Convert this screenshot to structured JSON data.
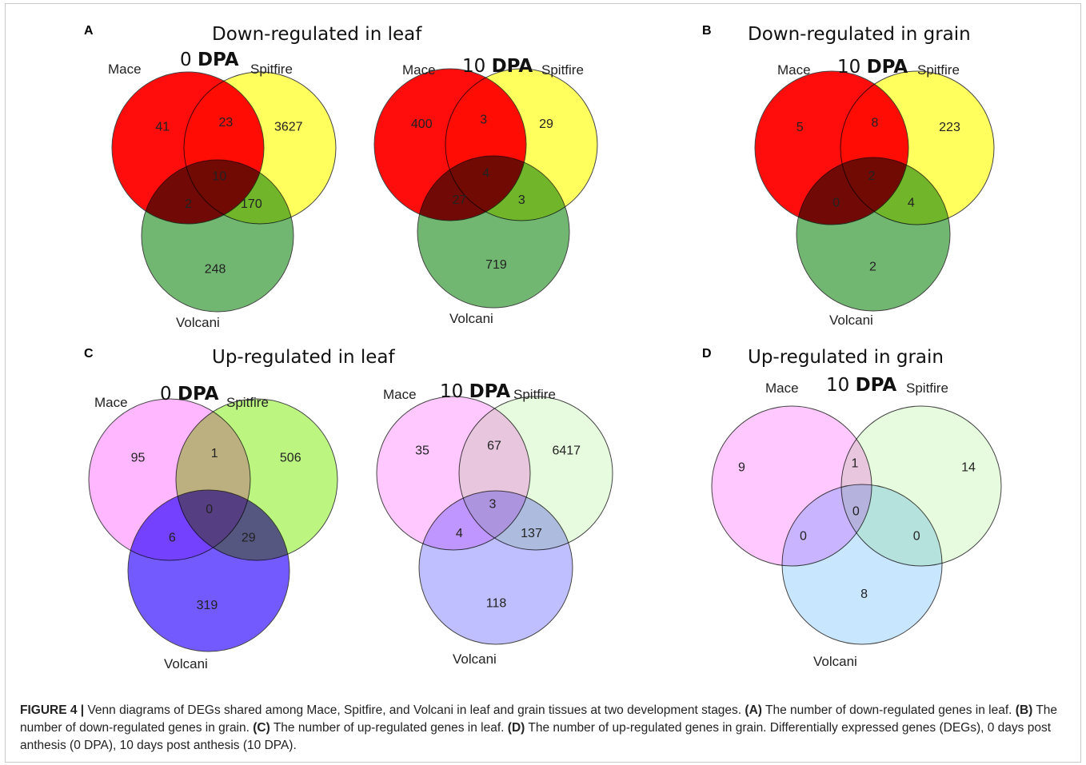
{
  "panels": {
    "A": {
      "letter": "A",
      "title": "Down-regulated in leaf"
    },
    "B": {
      "letter": "B",
      "title": "Down-regulated in grain"
    },
    "C": {
      "letter": "C",
      "title": "Up-regulated in leaf"
    },
    "D": {
      "letter": "D",
      "title": "Up-regulated in grain"
    }
  },
  "venns": [
    {
      "id": "A-0dpa",
      "panel": "A",
      "stage": {
        "number": "0",
        "unit": "DPA"
      },
      "sets": {
        "mace": "Mace",
        "spitfire": "Spitfire",
        "volcani": "Volcani"
      },
      "colors": {
        "mace": "#ff0000",
        "spitfire": "#ffff55",
        "volcani": "#3a9a3a"
      },
      "counts": {
        "mace_only": 41,
        "mace_spitfire": 23,
        "spitfire_only": 3627,
        "all_three": 10,
        "mace_volcani": 2,
        "spitfire_volcani": 170,
        "volcani_only": 248
      }
    },
    {
      "id": "A-10dpa",
      "panel": "A",
      "stage": {
        "number": "10",
        "unit": "DPA"
      },
      "sets": {
        "mace": "Mace",
        "spitfire": "Spitfire",
        "volcani": "Volcani"
      },
      "colors": {
        "mace": "#ff0000",
        "spitfire": "#ffff55",
        "volcani": "#3a9a3a"
      },
      "counts": {
        "mace_only": 400,
        "mace_spitfire": 3,
        "spitfire_only": 29,
        "all_three": 4,
        "mace_volcani": 27,
        "spitfire_volcani": 3,
        "volcani_only": 719
      }
    },
    {
      "id": "B-10dpa",
      "panel": "B",
      "stage": {
        "number": "10",
        "unit": "DPA"
      },
      "sets": {
        "mace": "Mace",
        "spitfire": "Spitfire",
        "volcani": "Volcani"
      },
      "colors": {
        "mace": "#ff0000",
        "spitfire": "#ffff55",
        "volcani": "#3a9a3a"
      },
      "counts": {
        "mace_only": 5,
        "mace_spitfire": 8,
        "spitfire_only": 223,
        "all_three": 2,
        "mace_volcani": 0,
        "spitfire_volcani": 4,
        "volcani_only": 2
      }
    },
    {
      "id": "C-0dpa",
      "panel": "C",
      "stage": {
        "number": "0",
        "unit": "DPA"
      },
      "sets": {
        "mace": "Mace",
        "spitfire": "Spitfire",
        "volcani": "Volcani"
      },
      "colors": {
        "mace": "#ffb3ff",
        "spitfire": "#b8f57a",
        "volcani": "#3d1aff"
      },
      "counts": {
        "mace_only": 95,
        "mace_spitfire": 1,
        "spitfire_only": 506,
        "all_three": 0,
        "mace_volcani": 6,
        "spitfire_volcani": 29,
        "volcani_only": 319
      }
    },
    {
      "id": "C-10dpa",
      "panel": "C",
      "stage": {
        "number": "10",
        "unit": "DPA"
      },
      "sets": {
        "mace": "Mace",
        "spitfire": "Spitfire",
        "volcani": "Volcani"
      },
      "colors": {
        "mace": "#ffc6ff",
        "spitfire": "#e6fbdc",
        "volcani": "#a6a6ff"
      },
      "counts": {
        "mace_only": 35,
        "mace_spitfire": 67,
        "spitfire_only": 6417,
        "all_three": 3,
        "mace_volcani": 4,
        "spitfire_volcani": 137,
        "volcani_only": 118
      }
    },
    {
      "id": "D-10dpa",
      "panel": "D",
      "stage": {
        "number": "10",
        "unit": "DPA"
      },
      "sets": {
        "mace": "Mace",
        "spitfire": "Spitfire",
        "volcani": "Volcani"
      },
      "colors": {
        "mace": "#ffc6ff",
        "spitfire": "#e6fbdc",
        "volcani": "#b4dcff"
      },
      "counts": {
        "mace_only": 9,
        "mace_spitfire": 1,
        "spitfire_only": 14,
        "all_three": 0,
        "mace_volcani": 0,
        "spitfire_volcani": 0,
        "volcani_only": 8
      }
    }
  ],
  "caption": {
    "label": "FIGURE 4 |",
    "intro": "Venn diagrams of DEGs shared among Mace, Spitfire, and Volcani in leaf and grain tissues at two development stages.",
    "refA": "(A)",
    "textA": "The number of down-regulated genes in leaf.",
    "refB": "(B)",
    "textB": "The number of down-regulated genes in grain.",
    "refC": "(C)",
    "textC": "The number of up-regulated genes in leaf.",
    "refD": "(D)",
    "textD": "The number of up-regulated genes in grain. Differentially expressed genes (DEGs), 0 days post anthesis (0 DPA), 10 days post anthesis (10 DPA)."
  }
}
